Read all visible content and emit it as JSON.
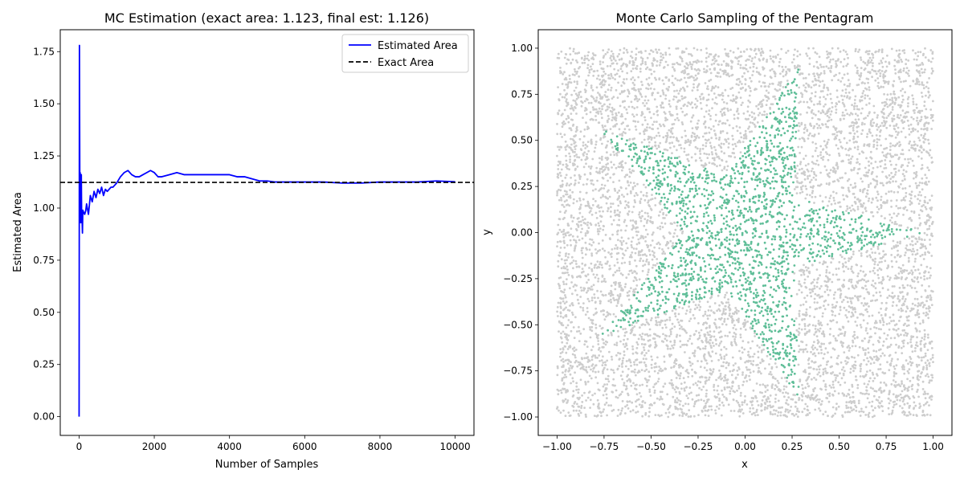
{
  "chart_data": [
    {
      "type": "line",
      "title": "MC Estimation (exact area: 1.123, final est: 1.126)",
      "xlabel": "Number of Samples",
      "ylabel": "Estimated Area",
      "xlim": [
        -500,
        10500
      ],
      "ylim": [
        -0.09,
        1.855
      ],
      "xticks": [
        0,
        2000,
        4000,
        6000,
        8000,
        10000
      ],
      "xtick_labels": [
        "0",
        "2000",
        "4000",
        "6000",
        "8000",
        "10000"
      ],
      "yticks": [
        0.0,
        0.25,
        0.5,
        0.75,
        1.0,
        1.25,
        1.5,
        1.75
      ],
      "ytick_labels": [
        "0.00",
        "0.25",
        "0.50",
        "0.75",
        "1.00",
        "1.25",
        "1.50",
        "1.75"
      ],
      "legend_position": "top-right",
      "grid": false,
      "series": [
        {
          "name": "Estimated Area",
          "color": "#0000ff",
          "style": "solid",
          "x": [
            1,
            10,
            20,
            30,
            40,
            50,
            60,
            70,
            80,
            90,
            100,
            120,
            150,
            180,
            200,
            250,
            300,
            350,
            400,
            450,
            500,
            550,
            600,
            650,
            700,
            750,
            800,
            850,
            900,
            950,
            1000,
            1100,
            1200,
            1300,
            1400,
            1500,
            1600,
            1700,
            1800,
            1900,
            2000,
            2100,
            2200,
            2400,
            2600,
            2800,
            3000,
            3200,
            3400,
            3600,
            3800,
            4000,
            4200,
            4400,
            4600,
            4800,
            5000,
            5200,
            5500,
            6000,
            6500,
            7000,
            7500,
            8000,
            8500,
            9000,
            9500,
            10000
          ],
          "y": [
            0.0,
            1.78,
            1.1,
            1.17,
            0.93,
            0.98,
            1.16,
            0.93,
            0.95,
            0.88,
            0.99,
            0.98,
            0.97,
            0.99,
            1.02,
            0.97,
            1.06,
            1.03,
            1.08,
            1.05,
            1.09,
            1.07,
            1.1,
            1.06,
            1.09,
            1.08,
            1.09,
            1.1,
            1.1,
            1.11,
            1.12,
            1.15,
            1.17,
            1.18,
            1.16,
            1.15,
            1.15,
            1.16,
            1.17,
            1.18,
            1.17,
            1.15,
            1.15,
            1.16,
            1.17,
            1.16,
            1.16,
            1.16,
            1.16,
            1.16,
            1.16,
            1.16,
            1.15,
            1.15,
            1.14,
            1.13,
            1.13,
            1.125,
            1.125,
            1.125,
            1.125,
            1.12,
            1.12,
            1.125,
            1.125,
            1.125,
            1.13,
            1.126
          ]
        },
        {
          "name": "Exact Area",
          "color": "#000000",
          "style": "dashed",
          "y_const": 1.123
        }
      ]
    },
    {
      "type": "scatter",
      "title": "Monte Carlo Sampling of the Pentagram",
      "xlabel": "x",
      "ylabel": "y",
      "xlim": [
        -1.1,
        1.1
      ],
      "ylim": [
        -1.1,
        1.1
      ],
      "xticks": [
        -1.0,
        -0.75,
        -0.5,
        -0.25,
        0.0,
        0.25,
        0.5,
        0.75,
        1.0
      ],
      "xtick_labels": [
        "−1.00",
        "−0.75",
        "−0.50",
        "−0.25",
        "0.00",
        "0.25",
        "0.50",
        "0.75",
        "1.00"
      ],
      "yticks": [
        -1.0,
        -0.75,
        -0.5,
        -0.25,
        0.0,
        0.25,
        0.5,
        0.75,
        1.0
      ],
      "ytick_labels": [
        "−1.00",
        "−0.75",
        "−0.50",
        "−0.25",
        "0.00",
        "0.25",
        "0.50",
        "0.75",
        "1.00"
      ],
      "grid": false,
      "sampling": {
        "count": 10000,
        "x_range": [
          -1,
          1
        ],
        "y_range": [
          -1,
          1
        ]
      },
      "shape_vertices": [
        [
          0.95,
          0.0
        ],
        [
          0.26,
          0.19
        ],
        [
          0.29,
          0.9
        ],
        [
          -0.1,
          0.31
        ],
        [
          -0.77,
          0.56
        ],
        [
          -0.32,
          0.0
        ],
        [
          -0.77,
          -0.56
        ],
        [
          -0.1,
          -0.31
        ],
        [
          0.29,
          -0.9
        ],
        [
          0.26,
          -0.19
        ]
      ],
      "inside_color": "#2aa876",
      "outside_color": "#c0c0c0"
    }
  ]
}
